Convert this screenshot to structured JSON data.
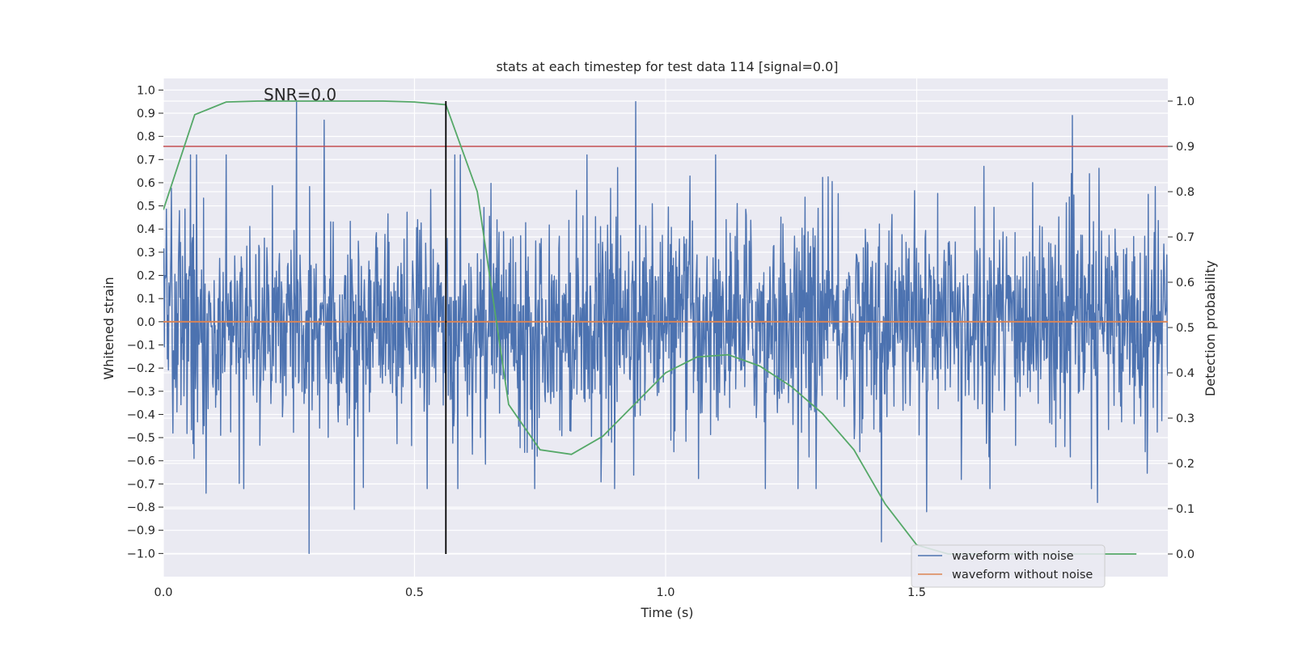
{
  "chart_data": {
    "type": "line",
    "title": "stats at each timestep for test data 114 [signal=0.0]",
    "annotation": "SNR=0.0",
    "xlabel": "Time (s)",
    "ylabel": "Whitened strain",
    "y2label": "Detection probability",
    "xlim": [
      0.0,
      2.0
    ],
    "ylim": [
      -1.1,
      1.05
    ],
    "y2lim": [
      -0.05,
      1.05
    ],
    "x_ticks": [
      "0.0",
      "0.5",
      "1.0",
      "1.5"
    ],
    "y_ticks": [
      "1.0",
      "0.9",
      "0.8",
      "0.7",
      "0.6",
      "0.5",
      "0.4",
      "0.3",
      "0.2",
      "0.1",
      "0.0",
      "-0.1",
      "-0.2",
      "-0.3",
      "-0.4",
      "-0.5",
      "-0.6",
      "-0.7",
      "-0.8",
      "-0.9",
      "-1.0"
    ],
    "y2_ticks": [
      "1.0",
      "0.9",
      "0.8",
      "0.7",
      "0.6",
      "0.5",
      "0.4",
      "0.3",
      "0.2",
      "0.1",
      "0.0"
    ],
    "legend": [
      {
        "label": "waveform with noise",
        "color": "#4c72b0"
      },
      {
        "label": "waveform without noise",
        "color": "#dd8452"
      }
    ],
    "legend_position": "lower-right",
    "noise_series": {
      "name": "waveform with noise",
      "color": "#4c72b0",
      "x_range": [
        0.0,
        2.0
      ],
      "n_samples": 2000,
      "typical_range": [
        -0.6,
        0.6
      ],
      "peaks": [
        {
          "x": 0.265,
          "y": 0.95
        },
        {
          "x": 0.29,
          "y": -1.0
        },
        {
          "x": 0.32,
          "y": 0.87
        },
        {
          "x": 0.94,
          "y": 0.95
        },
        {
          "x": 1.43,
          "y": -0.95
        },
        {
          "x": 1.81,
          "y": 0.89
        },
        {
          "x": 1.86,
          "y": -0.78
        },
        {
          "x": 1.52,
          "y": -0.82
        },
        {
          "x": 0.085,
          "y": -0.74
        },
        {
          "x": 0.38,
          "y": -0.81
        }
      ]
    },
    "clean_series": {
      "name": "waveform without noise",
      "color": "#dd8452",
      "x": [
        0.0,
        2.0
      ],
      "y": [
        0.0,
        0.0
      ]
    },
    "probability_series": {
      "name": "Detection probability",
      "color": "#55a868",
      "axis": "right",
      "x": [
        0.0,
        0.0625,
        0.125,
        0.1875,
        0.25,
        0.3125,
        0.375,
        0.4375,
        0.5,
        0.5625,
        0.625,
        0.6875,
        0.75,
        0.8125,
        0.875,
        0.9375,
        1.0,
        1.0625,
        1.125,
        1.1875,
        1.25,
        1.3125,
        1.375,
        1.4375,
        1.5,
        1.5625,
        1.625,
        1.6875,
        1.75,
        1.8125,
        1.875,
        1.9375
      ],
      "y": [
        0.76,
        0.97,
        0.998,
        1.0,
        1.0,
        1.0,
        1.0,
        1.0,
        0.998,
        0.992,
        0.8,
        0.33,
        0.23,
        0.22,
        0.26,
        0.33,
        0.4,
        0.435,
        0.44,
        0.415,
        0.37,
        0.31,
        0.23,
        0.11,
        0.02,
        0.0,
        0.0,
        0.0,
        0.0,
        0.0,
        0.0,
        0.0
      ]
    },
    "threshold": {
      "y2": 0.9,
      "color": "#c44e52"
    },
    "marker_time": {
      "x": 0.5625,
      "color": "#000000"
    }
  }
}
